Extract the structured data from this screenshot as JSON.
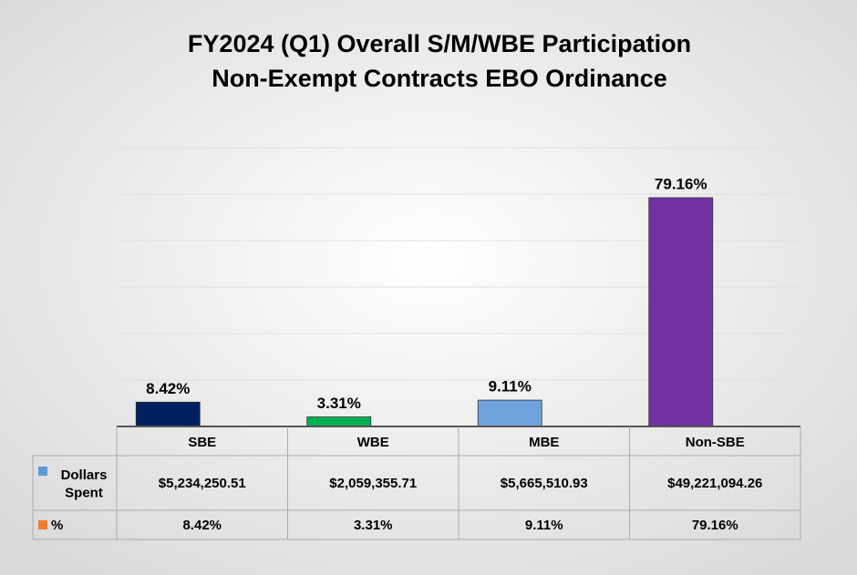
{
  "chart_data": {
    "type": "bar",
    "title": [
      "FY2024 (Q1) Overall S/M/WBE Participation",
      "Non-Exempt Contracts EBO Ordinance"
    ],
    "categories": [
      "SBE",
      "WBE",
      "MBE",
      "Non-SBE"
    ],
    "series": [
      {
        "name": "Dollars Spent",
        "color": "#5b9bd5",
        "colors": [
          "#002060",
          "#00b050",
          "#6fa3dc",
          "#7030a0"
        ],
        "values": [
          5234250.51,
          2059355.71,
          5665510.93,
          49221094.26
        ],
        "value_labels": [
          "$5,234,250.51",
          "$2,059,355.71",
          "$5,665,510.93",
          "$49,221,094.26"
        ]
      },
      {
        "name": "%",
        "color": "#ed7d31",
        "values": [
          8.42,
          3.31,
          9.11,
          79.16
        ],
        "value_labels": [
          "8.42%",
          "3.31%",
          "9.11%",
          "79.16%"
        ]
      }
    ],
    "ylim": [
      0,
      60000000
    ],
    "yticks": [
      0,
      10000000,
      20000000,
      30000000,
      40000000,
      50000000,
      60000000
    ],
    "grid": true
  }
}
